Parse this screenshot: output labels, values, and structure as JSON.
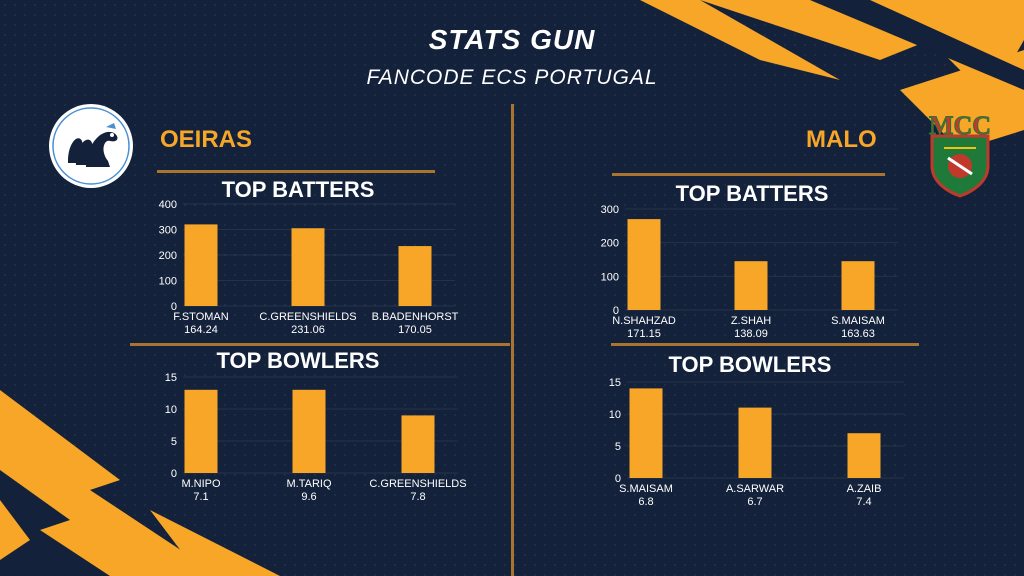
{
  "header": {
    "title": "STATS GUN",
    "subtitle": "FANCODE ECS PORTUGAL"
  },
  "teams": [
    {
      "name": "OEIRAS",
      "logo_icon": "swan-icon"
    },
    {
      "name": "MALO",
      "logo_icon": "mcc-crest-icon",
      "logo_text": "MCC"
    }
  ],
  "colors": {
    "background": "#13213a",
    "accent": "#f7a628",
    "divider": "#a9742f",
    "text": "#ffffff"
  },
  "chart_data": [
    {
      "id": "oeiras-batters",
      "type": "bar",
      "title": "TOP BATTERS",
      "categories": [
        "F.STOMAN",
        "C.GREENSHIELDS",
        "B.BADENHORST"
      ],
      "sublabels": [
        "164.24",
        "231.06",
        "170.05"
      ],
      "values": [
        320,
        305,
        235
      ],
      "ylim": [
        0,
        400
      ],
      "yticks": [
        0,
        100,
        200,
        300,
        400
      ]
    },
    {
      "id": "oeiras-bowlers",
      "type": "bar",
      "title": "TOP BOWLERS",
      "categories": [
        "M.NIPO",
        "M.TARIQ",
        "C.GREENSHIELDS"
      ],
      "sublabels": [
        "7.1",
        "9.6",
        "7.8"
      ],
      "values": [
        13,
        13,
        9
      ],
      "ylim": [
        0,
        15
      ],
      "yticks": [
        0,
        5,
        10,
        15
      ]
    },
    {
      "id": "malo-batters",
      "type": "bar",
      "title": "TOP BATTERS",
      "categories": [
        "N.SHAHZAD",
        "Z.SHAH",
        "S.MAISAM"
      ],
      "sublabels": [
        "171.15",
        "138.09",
        "163.63"
      ],
      "values": [
        270,
        145,
        145
      ],
      "ylim": [
        0,
        300
      ],
      "yticks": [
        0,
        100,
        200,
        300
      ]
    },
    {
      "id": "malo-bowlers",
      "type": "bar",
      "title": "TOP BOWLERS",
      "categories": [
        "S.MAISAM",
        "A.SARWAR",
        "A.ZAIB"
      ],
      "sublabels": [
        "6.8",
        "6.7",
        "7.4"
      ],
      "values": [
        14,
        11,
        7
      ],
      "ylim": [
        0,
        15
      ],
      "yticks": [
        0,
        5,
        10,
        15
      ]
    }
  ]
}
